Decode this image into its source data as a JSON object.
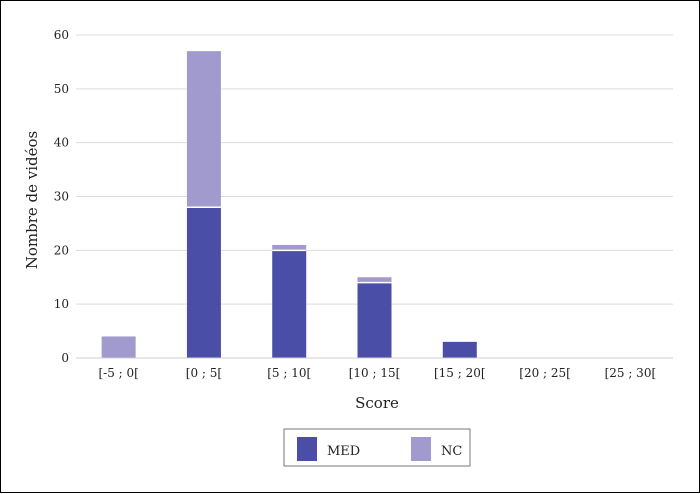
{
  "chart_data": {
    "type": "bar",
    "stacked": true,
    "categories": [
      "[-5 ; 0[",
      "[0 ; 5[",
      "[5 ; 10[",
      "[10 ; 15[",
      "[15 ; 20[",
      "[20 ; 25[",
      "[25 ; 30["
    ],
    "series": [
      {
        "name": "MED",
        "values": [
          0,
          28,
          20,
          14,
          3,
          0,
          0
        ],
        "color": "#4B4EA6"
      },
      {
        "name": "NC",
        "values": [
          4,
          29,
          1,
          1,
          0,
          0,
          0
        ],
        "color": "#A09ACF"
      }
    ],
    "xlabel": "Score",
    "ylabel": "Nombre de vidéos",
    "ylim": [
      0,
      60
    ],
    "yticks": [
      0,
      10,
      20,
      30,
      40,
      50,
      60
    ],
    "grid": true,
    "grid_color": "#dddddd",
    "legend_position": "bottom-center"
  }
}
